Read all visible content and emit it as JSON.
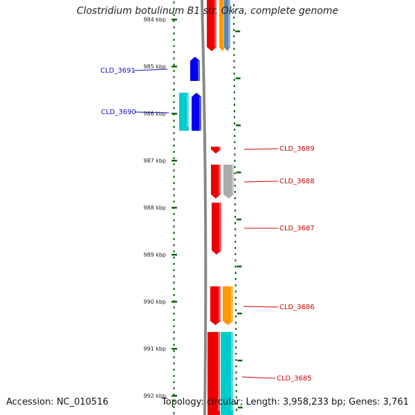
{
  "title": "Clostridium botulinum B1 str. Okra, complete genome",
  "footer": {
    "accession": "Accession: NC_010516",
    "summary": "Topology: circular; Length: 3,958,233 bp; Genes: 3,761"
  },
  "ruler": {
    "ticks": [
      {
        "label": "984 kbp",
        "kbp": 984
      },
      {
        "label": "985 kbp",
        "kbp": 985
      },
      {
        "label": "986 kbp",
        "kbp": 986
      },
      {
        "label": "987 kbp",
        "kbp": 987
      },
      {
        "label": "988 kbp",
        "kbp": 988
      },
      {
        "label": "989 kbp",
        "kbp": 989
      },
      {
        "label": "990 kbp",
        "kbp": 990
      },
      {
        "label": "991 kbp",
        "kbp": 991
      },
      {
        "label": "992 kbp",
        "kbp": 992
      }
    ]
  },
  "gene_labels": [
    {
      "text": "CLD_3691",
      "color": "#1010c0",
      "side": "left"
    },
    {
      "text": "CLD_3690",
      "color": "#1010c0",
      "side": "left"
    },
    {
      "text": "CLD_3689",
      "color": "#cc0000",
      "side": "right"
    },
    {
      "text": "CLD_3688",
      "color": "#cc0000",
      "side": "right"
    },
    {
      "text": "CLD_3687",
      "color": "#cc0000",
      "side": "right"
    },
    {
      "text": "CLD_3686",
      "color": "#cc0000",
      "side": "right"
    },
    {
      "text": "CLD_3685",
      "color": "#cc0000",
      "side": "right"
    }
  ],
  "colors": {
    "forward": "#0000ee",
    "forward_cog": "#00cccc",
    "reverse": "#ee0000",
    "grey": "#aaaaaa",
    "orange": "#ff9900",
    "steel_blue": "#5588bb",
    "ruler": "#006600",
    "backbone": "#888888"
  }
}
